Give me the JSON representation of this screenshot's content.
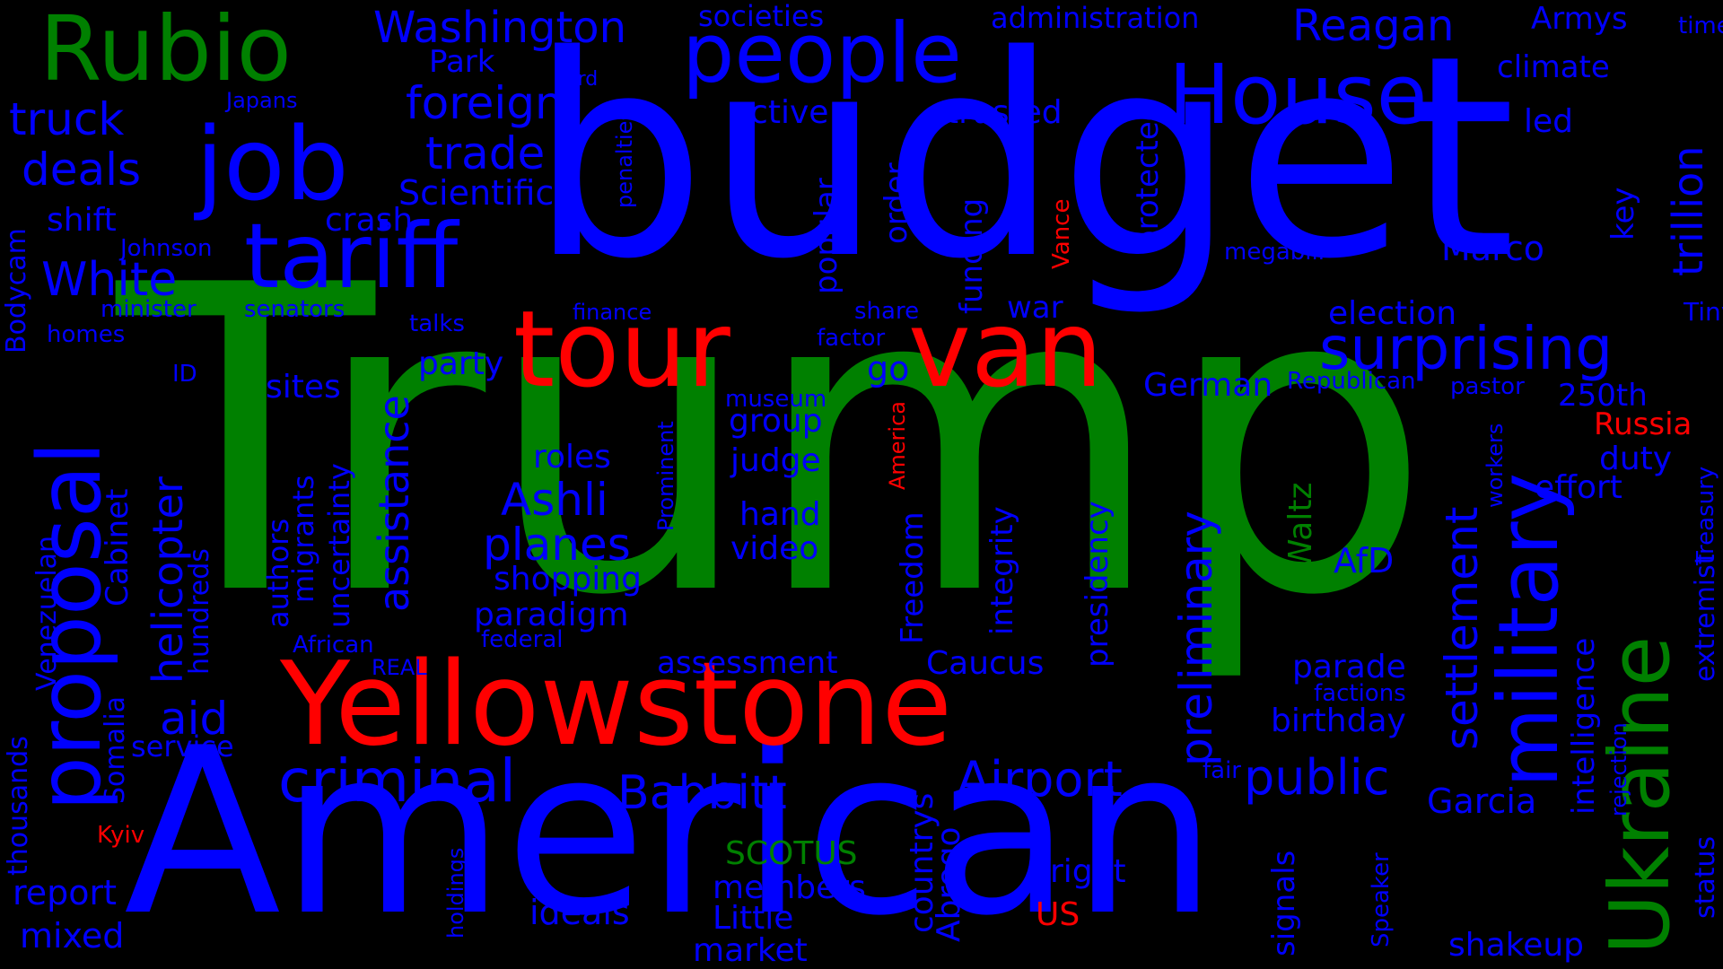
{
  "words": [
    {
      "key": "trump",
      "text": "Trump",
      "color": "green"
    },
    {
      "key": "budget",
      "text": "budget",
      "color": "blue"
    },
    {
      "key": "american",
      "text": "American",
      "color": "blue"
    },
    {
      "key": "yellowstone",
      "text": "Yellowstone",
      "color": "red"
    },
    {
      "key": "tour",
      "text": "tour",
      "color": "red"
    },
    {
      "key": "van",
      "text": "van",
      "color": "red"
    },
    {
      "key": "rubio",
      "text": "Rubio",
      "color": "green"
    },
    {
      "key": "job",
      "text": "job",
      "color": "blue"
    },
    {
      "key": "tariff",
      "text": "tariff",
      "color": "blue"
    },
    {
      "key": "people",
      "text": "people",
      "color": "blue"
    },
    {
      "key": "house",
      "text": "House",
      "color": "blue"
    },
    {
      "key": "proposal",
      "text": "proposal",
      "color": "blue"
    },
    {
      "key": "military",
      "text": "military",
      "color": "blue"
    },
    {
      "key": "ukraine",
      "text": "Ukraine",
      "color": "green"
    },
    {
      "key": "surprising",
      "text": "surprising",
      "color": "blue"
    },
    {
      "key": "washington",
      "text": "Washington",
      "color": "blue"
    },
    {
      "key": "reagan",
      "text": "Reagan",
      "color": "blue"
    },
    {
      "key": "foreign",
      "text": "foreign",
      "color": "blue"
    },
    {
      "key": "trade",
      "text": "trade",
      "color": "blue"
    },
    {
      "key": "truck",
      "text": "truck",
      "color": "blue"
    },
    {
      "key": "deals",
      "text": "deals",
      "color": "blue"
    },
    {
      "key": "white",
      "text": "White",
      "color": "blue"
    },
    {
      "key": "criminal",
      "text": "criminal",
      "color": "blue"
    },
    {
      "key": "babbitt",
      "text": "Babbitt",
      "color": "blue"
    },
    {
      "key": "airport",
      "text": "Airport",
      "color": "blue"
    },
    {
      "key": "public",
      "text": "public",
      "color": "blue"
    },
    {
      "key": "ashli",
      "text": "Ashli",
      "color": "blue"
    },
    {
      "key": "planes",
      "text": "planes",
      "color": "blue"
    },
    {
      "key": "aid",
      "text": "aid",
      "color": "blue"
    },
    {
      "key": "settlement",
      "text": "settlement",
      "color": "blue"
    },
    {
      "key": "preliminary",
      "text": "preliminary",
      "color": "blue"
    },
    {
      "key": "assistance",
      "text": "assistance",
      "color": "blue"
    },
    {
      "key": "helicopter",
      "text": "helicopter",
      "color": "blue"
    },
    {
      "key": "trillion",
      "text": "trillion",
      "color": "blue"
    },
    {
      "key": "administration",
      "text": "administration",
      "color": "blue"
    },
    {
      "key": "societies",
      "text": "societies",
      "color": "blue"
    },
    {
      "key": "armys",
      "text": "Armys",
      "color": "blue"
    },
    {
      "key": "time",
      "text": "time",
      "color": "blue"
    },
    {
      "key": "climate",
      "text": "climate",
      "color": "blue"
    },
    {
      "key": "park",
      "text": "Park",
      "color": "blue"
    },
    {
      "key": "card",
      "text": "card",
      "color": "blue"
    },
    {
      "key": "japans",
      "text": "Japans",
      "color": "blue"
    },
    {
      "key": "active",
      "text": "active",
      "color": "blue"
    },
    {
      "key": "trusted",
      "text": "trusted",
      "color": "blue"
    },
    {
      "key": "led",
      "text": "led",
      "color": "blue"
    },
    {
      "key": "scientific",
      "text": "Scientific",
      "color": "blue"
    },
    {
      "key": "penalties",
      "text": "penalties",
      "color": "blue"
    },
    {
      "key": "shift",
      "text": "shift",
      "color": "blue"
    },
    {
      "key": "crash",
      "text": "crash",
      "color": "blue"
    },
    {
      "key": "johnson",
      "text": "Johnson",
      "color": "blue"
    },
    {
      "key": "bodycam",
      "text": "Bodycam",
      "color": "blue"
    },
    {
      "key": "minister",
      "text": "minister",
      "color": "blue"
    },
    {
      "key": "senators",
      "text": "senators",
      "color": "blue"
    },
    {
      "key": "homes",
      "text": "homes",
      "color": "blue"
    },
    {
      "key": "talks",
      "text": "talks",
      "color": "blue"
    },
    {
      "key": "finance",
      "text": "finance",
      "color": "blue"
    },
    {
      "key": "share",
      "text": "share",
      "color": "blue"
    },
    {
      "key": "factor",
      "text": "factor",
      "color": "blue"
    },
    {
      "key": "war",
      "text": "war",
      "color": "blue"
    },
    {
      "key": "go",
      "text": "go",
      "color": "blue"
    },
    {
      "key": "election",
      "text": "election",
      "color": "blue"
    },
    {
      "key": "tiny",
      "text": "Tiny",
      "color": "blue"
    },
    {
      "key": "megabill",
      "text": "megabill",
      "color": "blue"
    },
    {
      "key": "marco",
      "text": "Marco",
      "color": "blue"
    },
    {
      "key": "key",
      "text": "key",
      "color": "blue"
    },
    {
      "key": "vance",
      "text": "Vance",
      "color": "red"
    },
    {
      "key": "order",
      "text": "order",
      "color": "blue"
    },
    {
      "key": "funding",
      "text": "funding",
      "color": "blue"
    },
    {
      "key": "protected",
      "text": "protected",
      "color": "blue"
    },
    {
      "key": "popular",
      "text": "popular",
      "color": "blue"
    },
    {
      "key": "id",
      "text": "ID",
      "color": "blue"
    },
    {
      "key": "sites",
      "text": "sites",
      "color": "blue"
    },
    {
      "key": "party",
      "text": "party",
      "color": "blue"
    },
    {
      "key": "german",
      "text": "German",
      "color": "blue"
    },
    {
      "key": "republican",
      "text": "Republican",
      "color": "blue"
    },
    {
      "key": "pastor",
      "text": "pastor",
      "color": "blue"
    },
    {
      "key": "250th",
      "text": "250th",
      "color": "blue"
    },
    {
      "key": "russia",
      "text": "Russia",
      "color": "red"
    },
    {
      "key": "duty",
      "text": "duty",
      "color": "blue"
    },
    {
      "key": "effort",
      "text": "effort",
      "color": "blue"
    },
    {
      "key": "treasury",
      "text": "Treasury",
      "color": "blue"
    },
    {
      "key": "museum",
      "text": "museum",
      "color": "blue"
    },
    {
      "key": "group",
      "text": "group",
      "color": "blue"
    },
    {
      "key": "judge",
      "text": "judge",
      "color": "blue"
    },
    {
      "key": "roles",
      "text": "roles",
      "color": "blue"
    },
    {
      "key": "hand",
      "text": "hand",
      "color": "blue"
    },
    {
      "key": "video",
      "text": "video",
      "color": "blue"
    },
    {
      "key": "shopping",
      "text": "shopping",
      "color": "blue"
    },
    {
      "key": "paradigm",
      "text": "paradigm",
      "color": "blue"
    },
    {
      "key": "federal",
      "text": "federal",
      "color": "blue"
    },
    {
      "key": "african",
      "text": "African",
      "color": "blue"
    },
    {
      "key": "real",
      "text": "REAL",
      "color": "blue"
    },
    {
      "key": "assessment",
      "text": "assessment",
      "color": "blue"
    },
    {
      "key": "caucus",
      "text": "Caucus",
      "color": "blue"
    },
    {
      "key": "parade",
      "text": "parade",
      "color": "blue"
    },
    {
      "key": "factions",
      "text": "factions",
      "color": "blue"
    },
    {
      "key": "birthday",
      "text": "birthday",
      "color": "blue"
    },
    {
      "key": "waltz",
      "text": "Waltz",
      "color": "green"
    },
    {
      "key": "afd",
      "text": "AfD",
      "color": "blue"
    },
    {
      "key": "presidency",
      "text": "presidency",
      "color": "blue"
    },
    {
      "key": "integrity",
      "text": "integrity",
      "color": "blue"
    },
    {
      "key": "freedom",
      "text": "Freedom",
      "color": "blue"
    },
    {
      "key": "america",
      "text": "America",
      "color": "red"
    },
    {
      "key": "prominent",
      "text": "Prominent",
      "color": "blue"
    },
    {
      "key": "workers",
      "text": "workers",
      "color": "blue"
    },
    {
      "key": "intelligence",
      "text": "intelligence",
      "color": "blue"
    },
    {
      "key": "extremist",
      "text": "extremist",
      "color": "blue"
    },
    {
      "key": "status",
      "text": "status",
      "color": "blue"
    },
    {
      "key": "rejection",
      "text": "rejection",
      "color": "blue"
    },
    {
      "key": "garcia",
      "text": "Garcia",
      "color": "blue"
    },
    {
      "key": "fair",
      "text": "fair",
      "color": "blue"
    },
    {
      "key": "cabinet",
      "text": "Cabinet",
      "color": "blue"
    },
    {
      "key": "hundreds",
      "text": "hundreds",
      "color": "blue"
    },
    {
      "key": "authors",
      "text": "authors",
      "color": "blue"
    },
    {
      "key": "migrants",
      "text": "migrants",
      "color": "blue"
    },
    {
      "key": "uncertainty",
      "text": "uncertainty",
      "color": "blue"
    },
    {
      "key": "venezuelan",
      "text": "Venezuelan",
      "color": "blue"
    },
    {
      "key": "thousands",
      "text": "thousands",
      "color": "blue"
    },
    {
      "key": "somalia",
      "text": "Somalia",
      "color": "blue"
    },
    {
      "key": "service",
      "text": "service",
      "color": "blue"
    },
    {
      "key": "kyiv",
      "text": "Kyiv",
      "color": "red"
    },
    {
      "key": "report",
      "text": "report",
      "color": "blue"
    },
    {
      "key": "mixed",
      "text": "mixed",
      "color": "blue"
    },
    {
      "key": "holdings",
      "text": "holdings",
      "color": "blue"
    },
    {
      "key": "ideals",
      "text": "ideals",
      "color": "blue"
    },
    {
      "key": "scotus",
      "text": "SCOTUS",
      "color": "green"
    },
    {
      "key": "members",
      "text": "members",
      "color": "blue"
    },
    {
      "key": "little",
      "text": "Little",
      "color": "blue"
    },
    {
      "key": "market",
      "text": "market",
      "color": "blue"
    },
    {
      "key": "countrys",
      "text": "countrys",
      "color": "blue"
    },
    {
      "key": "abrego",
      "text": "Abrego",
      "color": "blue"
    },
    {
      "key": "right",
      "text": "right",
      "color": "blue"
    },
    {
      "key": "us",
      "text": "US",
      "color": "red"
    },
    {
      "key": "signals",
      "text": "signals",
      "color": "blue"
    },
    {
      "key": "speaker",
      "text": "Speaker",
      "color": "blue"
    },
    {
      "key": "shakeup",
      "text": "shakeup",
      "color": "blue"
    }
  ]
}
